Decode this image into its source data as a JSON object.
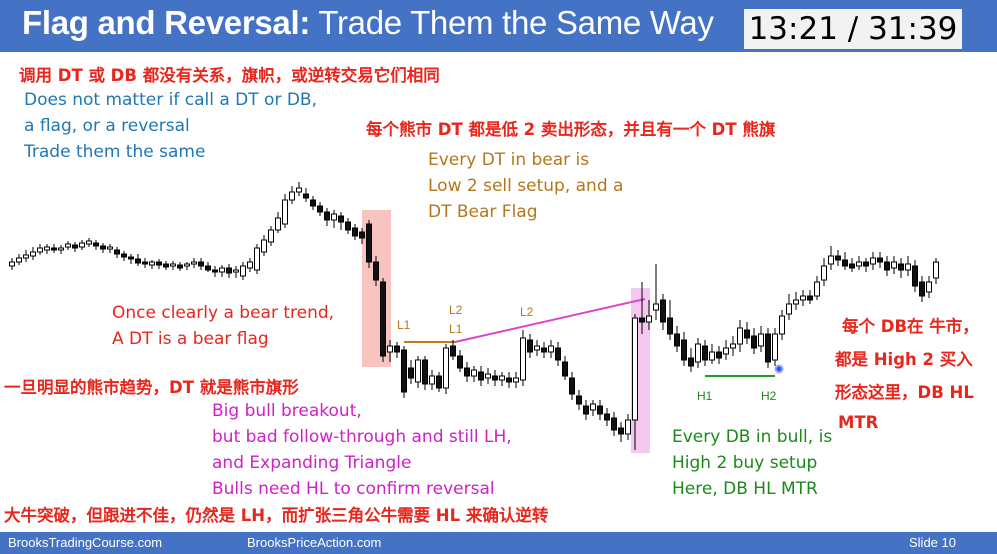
{
  "slide": {
    "title_bold": "Flag and Reversal:",
    "title_rest": " Trade Them the Same Way",
    "timer": "13:21 / 31:39"
  },
  "annotations": {
    "cn_top": "调用 DT 或 DB 都没有关系，旗帜，或逆转交易它们相同",
    "en_top_1": "Does not matter if call a DT or DB,",
    "en_top_2": "a flag, or a reversal",
    "en_top_3": "Trade them the same",
    "cn_bear_dt": "每个熊市 DT 都是低 2 卖出形态，并且有一个 DT 熊旗",
    "en_bear_1": "Every DT in bear is",
    "en_bear_2": "Low 2 sell setup, and a",
    "en_bear_3": "DT Bear Flag",
    "en_trend_1": "Once clearly a bear trend,",
    "en_trend_2": "A DT is a bear flag",
    "cn_trend": "一旦明显的熊市趋势，DT 就是熊市旗形",
    "en_bull_1": "Big bull breakout,",
    "en_bull_2": "but bad follow-through and still LH,",
    "en_bull_3": "and Expanding Triangle",
    "en_bull_4": "Bulls need HL to confirm reversal",
    "cn_bull": "大牛突破，但跟进不佳，仍然是 LH，而扩张三角公牛需要 HL 来确认逆转",
    "en_db_1": "Every DB in bull, is",
    "en_db_2": "High 2 buy setup",
    "en_db_3": "Here, DB HL MTR",
    "cn_db_1": "每个 DB在 牛市，",
    "cn_db_2": "都是 High 2 买入",
    "cn_db_3": "形态这里，DB HL",
    "cn_db_4": "MTR"
  },
  "labels": {
    "l1_a": "L1",
    "l2_top": "L2",
    "l1_b": "L1",
    "l2_b": "L2",
    "h1": "H1",
    "h2": "H2"
  },
  "footer": {
    "left": "BrooksTradingCourse.com",
    "center": "BrooksPriceAction.com",
    "right": "Slide  10"
  },
  "colors": {
    "header": "#4472c4",
    "red": "#e8261d",
    "blue": "#1f77b4",
    "brown": "#b5761b",
    "magenta": "#d020c8",
    "green": "#1b8a1b"
  }
}
